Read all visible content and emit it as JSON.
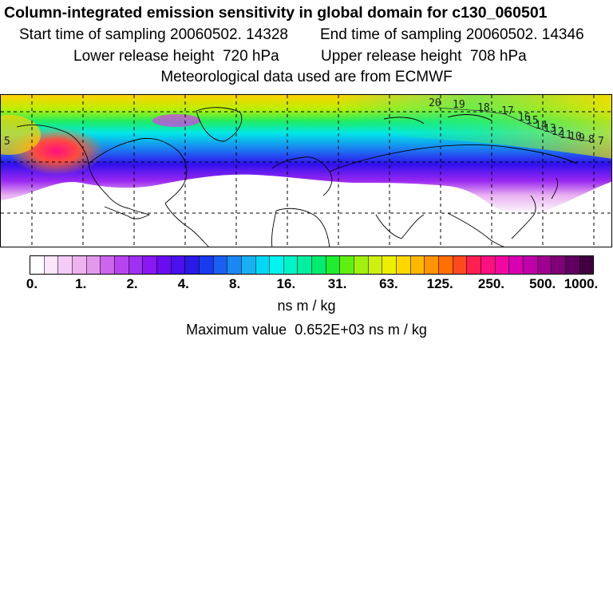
{
  "header": {
    "title": "Column-integrated emission sensitivity in global domain for c130_060501",
    "start_label": "Start time of sampling",
    "start_value": "20060502. 14328",
    "end_label": "End time of sampling",
    "end_value": "20060502. 14346",
    "lower_label": "Lower release height",
    "lower_value": "720 hPa",
    "upper_label": "Upper release height",
    "upper_value": "708 hPa",
    "met_line": "Meteorological data used are from ECMWF"
  },
  "map": {
    "trajectory_labels": [
      "20",
      "19",
      "18",
      "17",
      "16",
      "15",
      "14",
      "13",
      "12",
      "11",
      "10",
      "9",
      "8",
      "7",
      "5"
    ],
    "colors": {
      "background": "#ffffff",
      "coast": "#000000",
      "grid": "#000000"
    }
  },
  "colorbar": {
    "tick_labels": [
      "0.",
      "1.",
      "2.",
      "4.",
      "8.",
      "16.",
      "31.",
      "63.",
      "125.",
      "250.",
      "500.",
      "1000."
    ],
    "colors": [
      "#ffffff",
      "#fbe6fb",
      "#f5ccf5",
      "#eeb2ee",
      "#e199ea",
      "#cc66ee",
      "#b844f0",
      "#a030f2",
      "#8a18f2",
      "#6a0cf0",
      "#4a10ee",
      "#2a1ae6",
      "#1a3af0",
      "#1a60f0",
      "#1a88f2",
      "#18b0f2",
      "#00d8f4",
      "#00f4f0",
      "#00f4c8",
      "#00f0a0",
      "#00ec70",
      "#20ec30",
      "#60f010",
      "#a0f010",
      "#ccf010",
      "#ecf000",
      "#fcd800",
      "#ffb800",
      "#ff9400",
      "#ff7000",
      "#ff4a20",
      "#ff2050",
      "#ff1080",
      "#f008a0",
      "#d800b0",
      "#c000a8",
      "#a00090",
      "#800078",
      "#600060",
      "#400040"
    ],
    "units": "ns m / kg",
    "max_label": "Maximum value",
    "max_value": "0.652E+03",
    "max_units": "ns m / kg"
  }
}
